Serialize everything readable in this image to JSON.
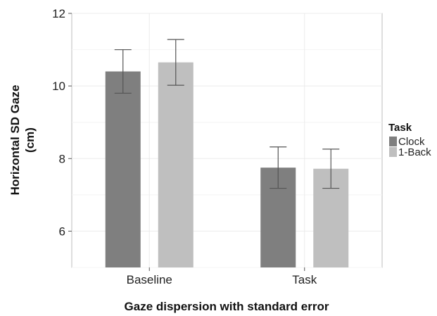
{
  "chart_data": {
    "type": "bar",
    "categories": [
      "Baseline",
      "Task"
    ],
    "series": [
      {
        "name": "Clock",
        "values": [
          10.4,
          7.75
        ],
        "error": [
          0.6,
          0.57
        ],
        "color": "#7f7f7f"
      },
      {
        "name": "1-Back",
        "values": [
          10.65,
          7.72
        ],
        "error": [
          0.63,
          0.54
        ],
        "color": "#bfbfbf"
      }
    ],
    "ylabel": [
      "Horizontal SD Gaze",
      "(cm)"
    ],
    "xlabel": "Gaze dispersion with standard error",
    "ylim": [
      5,
      12
    ],
    "yticks": [
      6,
      8,
      10,
      12
    ],
    "grid": true,
    "legend": {
      "title": "Task",
      "position": "right"
    },
    "error_bar_color": "#555555"
  }
}
